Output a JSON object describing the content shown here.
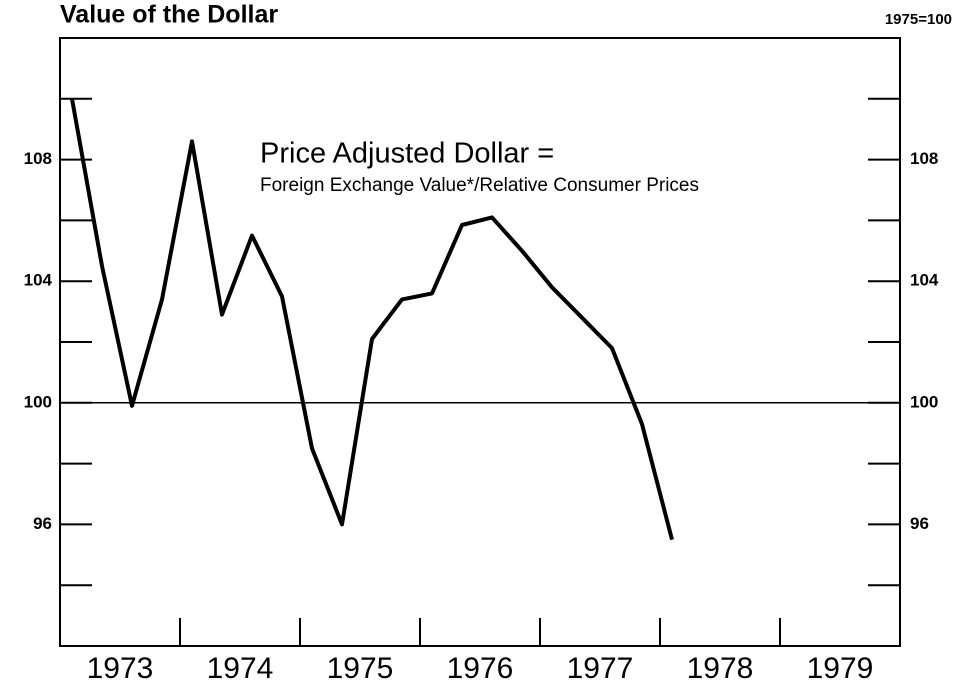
{
  "chart_data": {
    "type": "line",
    "title": "Value of the Dollar",
    "y2_label": "1975=100",
    "annotations": [
      "Price Adjusted Dollar =",
      "Foreign Exchange Value*/Relative Consumer Prices"
    ],
    "categories": [
      "1973",
      "1974",
      "1975",
      "1976",
      "1977",
      "1978",
      "1979"
    ],
    "xlim": [
      1973,
      1980
    ],
    "xticks": [
      1974,
      1975,
      1976,
      1977,
      1978,
      1979
    ],
    "ylim": [
      92,
      112
    ],
    "yticks": [
      96,
      100,
      104,
      108
    ],
    "minor_yticks": [
      94,
      98,
      102,
      106,
      110
    ],
    "hline": 100,
    "series": [
      {
        "color": "#000000",
        "x": [
          1973.1,
          1973.35,
          1973.6,
          1973.85,
          1974.1,
          1974.35,
          1974.6,
          1974.85,
          1975.1,
          1975.35,
          1975.6,
          1975.85,
          1976.1,
          1976.35,
          1976.6,
          1976.85,
          1977.1,
          1977.35,
          1977.6,
          1977.85,
          1978.1
        ],
        "values": [
          110.0,
          104.5,
          99.9,
          103.4,
          108.6,
          102.9,
          105.5,
          103.5,
          98.5,
          96.0,
          102.1,
          103.4,
          103.6,
          105.85,
          106.1,
          105.0,
          103.8,
          102.8,
          101.8,
          99.3,
          95.5
        ]
      }
    ]
  }
}
